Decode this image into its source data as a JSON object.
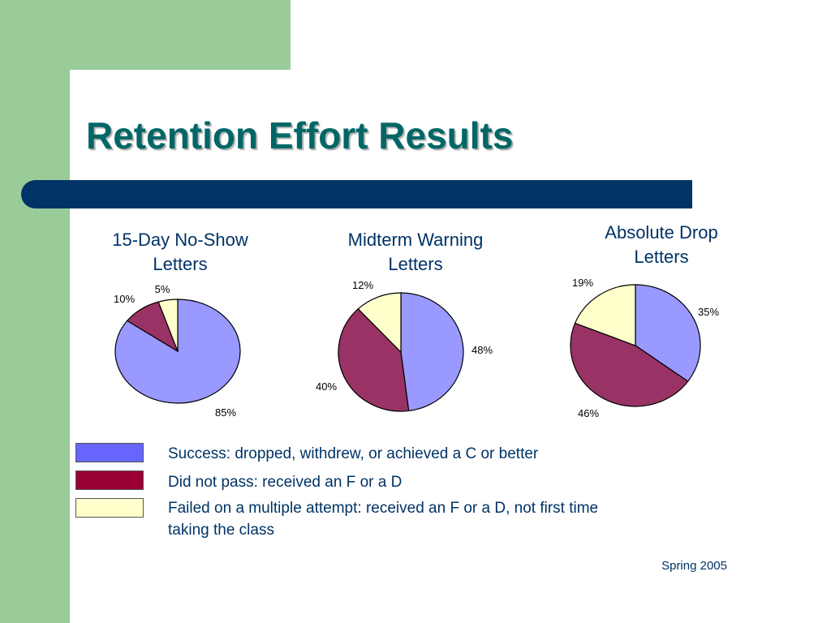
{
  "title": "Retention Effort Results",
  "colors": {
    "success": "#9999ff",
    "did_not_pass": "#993366",
    "failed_multiple": "#ffffcc",
    "legend_success": "#6666ff",
    "legend_did_not_pass": "#990033",
    "legend_failed_multiple": "#ffffcc"
  },
  "chart_data": [
    {
      "type": "pie",
      "title_lines": [
        "15-Day No-Show",
        "Letters"
      ],
      "slices": [
        {
          "category": "success",
          "value": 85,
          "label": "85%"
        },
        {
          "category": "did_not_pass",
          "value": 10,
          "label": "10%"
        },
        {
          "category": "failed_multiple",
          "value": 5,
          "label": "5%"
        }
      ]
    },
    {
      "type": "pie",
      "title_lines": [
        "Midterm Warning",
        "Letters"
      ],
      "slices": [
        {
          "category": "success",
          "value": 48,
          "label": "48%"
        },
        {
          "category": "did_not_pass",
          "value": 40,
          "label": "40%"
        },
        {
          "category": "failed_multiple",
          "value": 12,
          "label": "12%"
        }
      ]
    },
    {
      "type": "pie",
      "title_lines": [
        "Absolute Drop",
        "Letters"
      ],
      "slices": [
        {
          "category": "success",
          "value": 35,
          "label": "35%"
        },
        {
          "category": "did_not_pass",
          "value": 46,
          "label": "46%"
        },
        {
          "category": "failed_multiple",
          "value": 19,
          "label": "19%"
        }
      ]
    }
  ],
  "legend": [
    {
      "category": "success",
      "lines": [
        "Success: dropped, withdrew, or achieved a C or better"
      ]
    },
    {
      "category": "did_not_pass",
      "lines": [
        "Did not pass: received an F or a D"
      ]
    },
    {
      "category": "failed_multiple",
      "lines": [
        "Failed on a multiple attempt: received an F or a D, not first time",
        "taking the class"
      ]
    }
  ],
  "footer": "Spring 2005"
}
